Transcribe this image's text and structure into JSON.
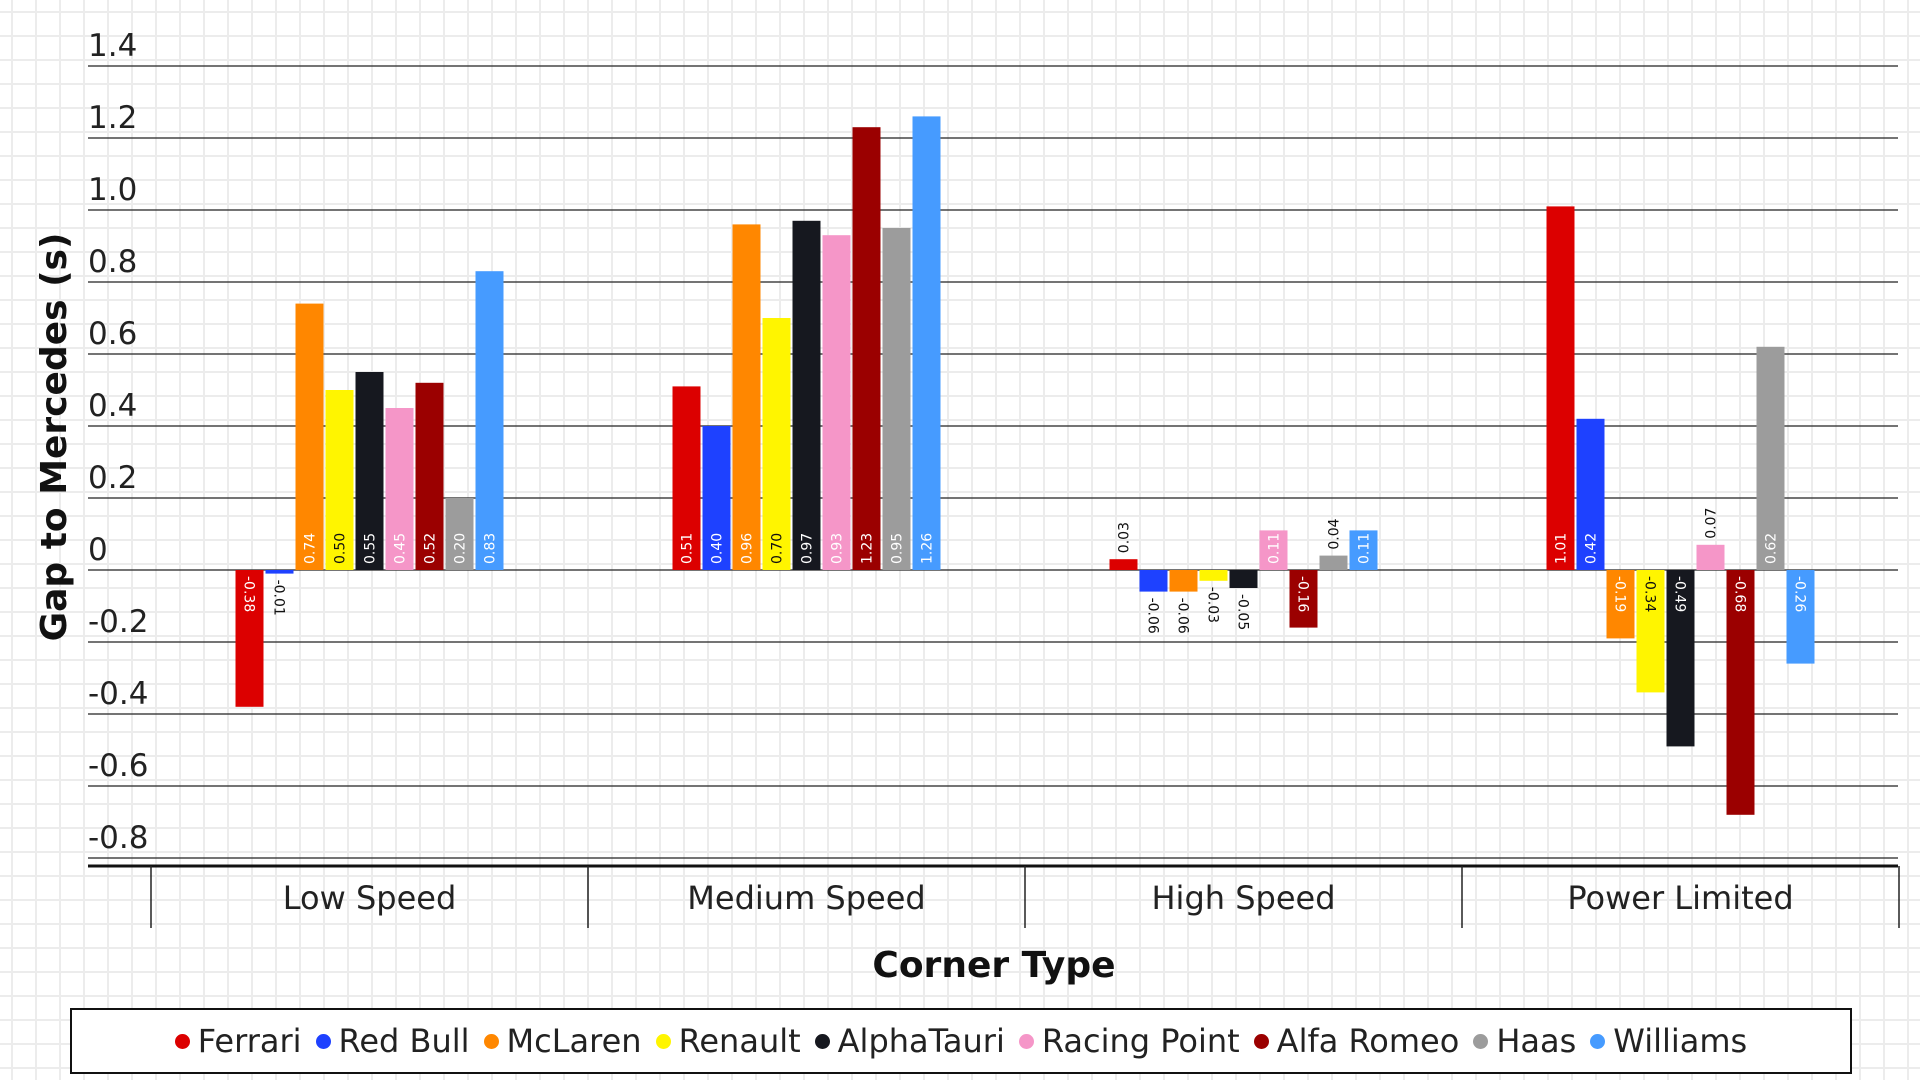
{
  "chart_data": {
    "type": "bar",
    "title": "",
    "xlabel": "Corner Type",
    "ylabel": "Gap to Mercedes (s)",
    "ylim": [
      -0.8,
      1.4
    ],
    "yticks": [
      "1.4",
      "1.2",
      "1.0",
      "0.8",
      "0.6",
      "0.4",
      "0.2",
      "0",
      "-0.2",
      "-0.4",
      "-0.6",
      "-0.8"
    ],
    "grid": true,
    "legend_position": "bottom",
    "categories": [
      "Low Speed",
      "Medium Speed",
      "High Speed",
      "Power Limited"
    ],
    "series": [
      {
        "name": "Ferrari",
        "color": "#dc0000",
        "values": [
          -0.38,
          0.51,
          0.03,
          1.01
        ]
      },
      {
        "name": "Red Bull",
        "color": "#1e41ff",
        "values": [
          -0.01,
          0.4,
          -0.06,
          0.42
        ]
      },
      {
        "name": "McLaren",
        "color": "#ff8700",
        "values": [
          0.74,
          0.96,
          -0.06,
          -0.19
        ]
      },
      {
        "name": "Renault",
        "color": "#fff500",
        "values": [
          0.5,
          0.7,
          -0.03,
          -0.34
        ]
      },
      {
        "name": "AlphaTauri",
        "color": "#16181f",
        "values": [
          0.55,
          0.97,
          -0.05,
          -0.49
        ]
      },
      {
        "name": "Racing Point",
        "color": "#f596c8",
        "values": [
          0.45,
          0.93,
          0.11,
          0.07
        ]
      },
      {
        "name": "Alfa Romeo",
        "color": "#9b0000",
        "values": [
          0.52,
          1.23,
          -0.16,
          -0.68
        ]
      },
      {
        "name": "Haas",
        "color": "#9c9c9c",
        "values": [
          0.2,
          0.95,
          0.04,
          0.62
        ]
      },
      {
        "name": "Williams",
        "color": "#469bff",
        "values": [
          0.83,
          1.26,
          0.11,
          -0.26
        ]
      }
    ]
  }
}
